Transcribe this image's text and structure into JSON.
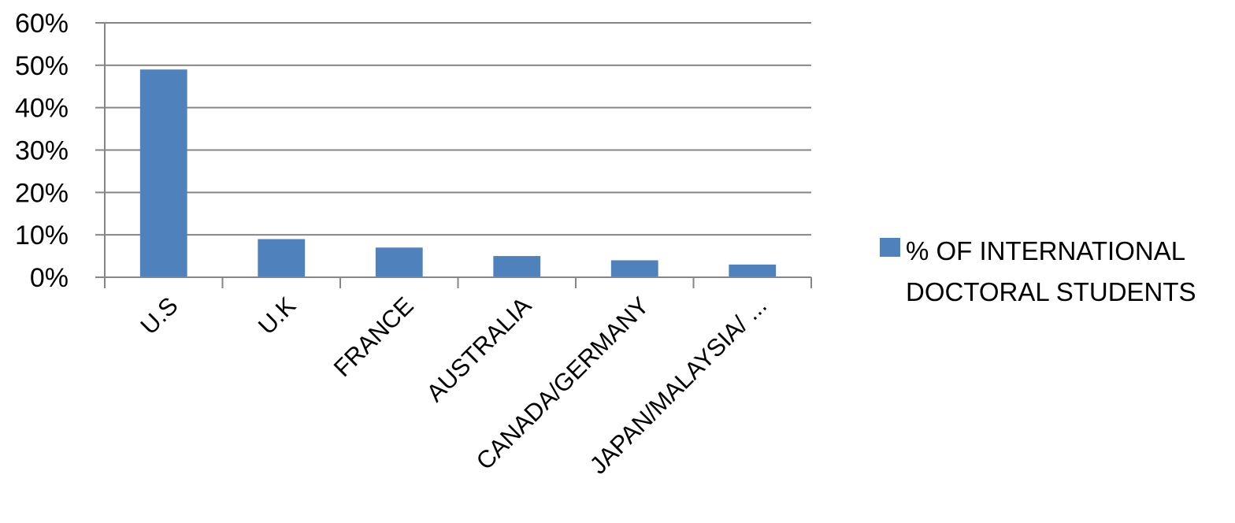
{
  "chart_data": {
    "type": "bar",
    "categories": [
      "U.S",
      "U.K",
      "FRANCE",
      "AUSTRALIA",
      "CANADA/GERMANY",
      "JAPAN/MALAYSIA/ ..."
    ],
    "series": [
      {
        "name": "% OF INTERNATIONAL DOCTORAL STUDENTS",
        "values": [
          0.49,
          0.09,
          0.07,
          0.05,
          0.04,
          0.03
        ],
        "color": "#4f81bd"
      }
    ],
    "y_ticks": [
      "0%",
      "10%",
      "20%",
      "30%",
      "40%",
      "50%",
      "60%"
    ],
    "ylim": [
      0,
      0.6
    ],
    "grid": true,
    "legend": {
      "position": "right",
      "lines": [
        "% OF INTERNATIONAL",
        "DOCTORAL STUDENTS"
      ]
    },
    "colors": {
      "bar": "#4f81bd",
      "grid": "#868686",
      "axis": "#868686"
    }
  }
}
